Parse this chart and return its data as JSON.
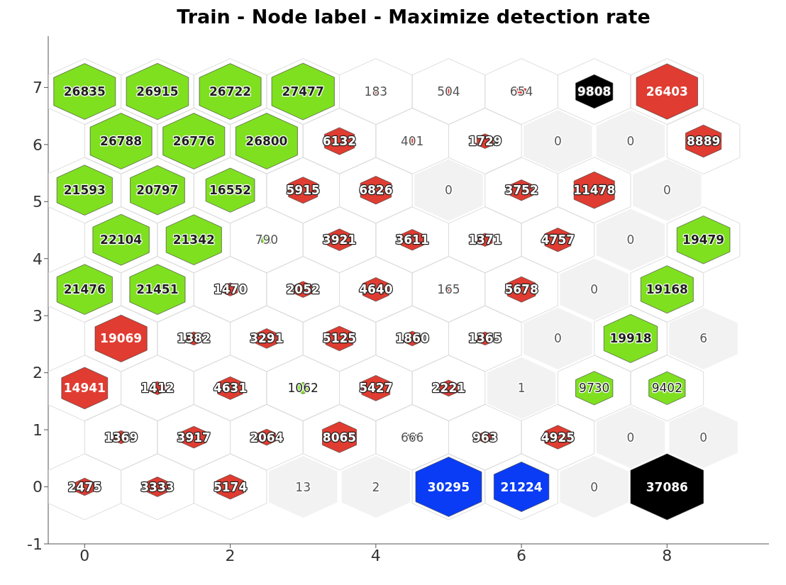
{
  "chart_data": {
    "type": "bubble",
    "title": "Train - Node label - Maximize detection rate",
    "xlim": [
      -0.5,
      9.4
    ],
    "xticks": [
      0,
      2,
      4,
      6,
      8
    ],
    "ylim": [
      -1,
      7.9
    ],
    "yticks": [
      -1,
      0,
      1,
      2,
      3,
      4,
      5,
      6,
      7
    ],
    "legend": false,
    "grid": false,
    "series": [
      {
        "color": "#7fe020",
        "x": [
          0,
          1,
          2,
          3,
          0.5,
          1.5,
          2.5,
          0,
          1,
          2,
          0.5,
          1.5,
          2.5,
          8.5,
          0,
          1,
          8,
          7.5,
          3,
          7,
          8
        ],
        "values": [
          6.93,
          6.93,
          6.93,
          6.93,
          6.06,
          6.06,
          6.06,
          5.2,
          5.2,
          5.2,
          4.33,
          4.33,
          4.33,
          4.33,
          3.46,
          3.46,
          3.46,
          2.6,
          1.73,
          1.73,
          1.73
        ],
        "sizes": [
          0.72,
          0.73,
          0.72,
          0.74,
          0.72,
          0.72,
          0.72,
          0.58,
          0.56,
          0.45,
          0.6,
          0.58,
          0.02,
          0.53,
          0.58,
          0.58,
          0.52,
          0.54,
          0.03,
          0.26,
          0.25
        ]
      },
      {
        "color": "#e03c31",
        "x": [
          4,
          5,
          6,
          8,
          3.5,
          4.5,
          5.5,
          8.5,
          3,
          4,
          6,
          7,
          3.5,
          4.5,
          5.5,
          6.5,
          2,
          3,
          4,
          5,
          6,
          0.5,
          1.5,
          2.5,
          3.5,
          4.5,
          5.5,
          0,
          1,
          2,
          4,
          5,
          0.5,
          1.5,
          2.5,
          3.5,
          5.5,
          6.5,
          0,
          1,
          2
        ],
        "values": [
          6.93,
          6.93,
          6.93,
          6.93,
          6.06,
          6.06,
          6.06,
          6.06,
          5.2,
          5.2,
          5.2,
          5.2,
          4.33,
          4.33,
          4.33,
          4.33,
          3.46,
          3.46,
          3.46,
          3.46,
          3.46,
          2.6,
          2.6,
          2.6,
          2.6,
          2.6,
          2.6,
          1.73,
          1.73,
          1.73,
          1.73,
          1.73,
          0.87,
          0.87,
          0.87,
          0.87,
          0.87,
          0.87,
          0,
          0,
          0
        ],
        "sizes": [
          0.005,
          0.01,
          0.02,
          0.71,
          0.17,
          0.01,
          0.05,
          0.24,
          0.16,
          0.18,
          0.1,
          0.31,
          0.11,
          0.1,
          0.04,
          0.13,
          0.04,
          0.06,
          0.13,
          0.004,
          0.15,
          0.51,
          0.04,
          0.09,
          0.14,
          0.05,
          0.04,
          0.4,
          0.04,
          0.12,
          0.15,
          0.06,
          0.04,
          0.11,
          0.06,
          0.22,
          0.03,
          0.13,
          0.07,
          0.09,
          0.14
        ]
      },
      {
        "color": "#000000",
        "x": [
          7,
          4.5,
          8
        ],
        "values": [
          6.93,
          0.87,
          0
        ],
        "sizes": [
          0.26,
          0.02,
          1
        ]
      },
      {
        "color": "#0a3cf5",
        "x": [
          5,
          6
        ],
        "values": [
          0,
          0
        ],
        "sizes": [
          0.82,
          0.57
        ]
      },
      {
        "type": "scatter",
        "color": "#f2f2f2",
        "x": [
          6.5,
          7.5,
          5,
          8,
          7.5,
          7,
          6.5,
          8.5,
          6,
          7.5,
          8.5,
          3,
          4,
          7
        ],
        "values": [
          6.06,
          6.06,
          5.2,
          5.2,
          4.33,
          3.46,
          2.6,
          2.6,
          1.73,
          0.87,
          0.87,
          0,
          0,
          0
        ]
      }
    ],
    "annotations": [
      {
        "text": "26835",
        "x": 0,
        "y": 6.93
      },
      {
        "text": "26915",
        "x": 1,
        "y": 6.93
      },
      {
        "text": "26722",
        "x": 2,
        "y": 6.93
      },
      {
        "text": "27477",
        "x": 3,
        "y": 6.93
      },
      {
        "text": "183",
        "x": 4,
        "y": 6.93
      },
      {
        "text": "504",
        "x": 5,
        "y": 6.93
      },
      {
        "text": "654",
        "x": 6,
        "y": 6.93
      },
      {
        "text": "9808",
        "x": 7,
        "y": 6.93
      },
      {
        "text": "26403",
        "x": 8,
        "y": 6.93
      },
      {
        "text": "26788",
        "x": 0.5,
        "y": 6.06
      },
      {
        "text": "26776",
        "x": 1.5,
        "y": 6.06
      },
      {
        "text": "26800",
        "x": 2.5,
        "y": 6.06
      },
      {
        "text": "6132",
        "x": 3.5,
        "y": 6.06
      },
      {
        "text": "401",
        "x": 4.5,
        "y": 6.06
      },
      {
        "text": "1729",
        "x": 5.5,
        "y": 6.06
      },
      {
        "text": "0",
        "x": 6.5,
        "y": 6.06
      },
      {
        "text": "0",
        "x": 7.5,
        "y": 6.06
      },
      {
        "text": "8889",
        "x": 8.5,
        "y": 6.06
      },
      {
        "text": "21593",
        "x": 0,
        "y": 5.2
      },
      {
        "text": "20797",
        "x": 1,
        "y": 5.2
      },
      {
        "text": "16552",
        "x": 2,
        "y": 5.2
      },
      {
        "text": "5915",
        "x": 3,
        "y": 5.2
      },
      {
        "text": "6826",
        "x": 4,
        "y": 5.2
      },
      {
        "text": "0",
        "x": 5,
        "y": 5.2
      },
      {
        "text": "3752",
        "x": 6,
        "y": 5.2
      },
      {
        "text": "11478",
        "x": 7,
        "y": 5.2
      },
      {
        "text": "0",
        "x": 8,
        "y": 5.2
      },
      {
        "text": "22104",
        "x": 0.5,
        "y": 4.33
      },
      {
        "text": "21342",
        "x": 1.5,
        "y": 4.33
      },
      {
        "text": "790",
        "x": 2.5,
        "y": 4.33
      },
      {
        "text": "3921",
        "x": 3.5,
        "y": 4.33
      },
      {
        "text": "3611",
        "x": 4.5,
        "y": 4.33
      },
      {
        "text": "1371",
        "x": 5.5,
        "y": 4.33
      },
      {
        "text": "4757",
        "x": 6.5,
        "y": 4.33
      },
      {
        "text": "0",
        "x": 7.5,
        "y": 4.33
      },
      {
        "text": "19479",
        "x": 8.5,
        "y": 4.33
      },
      {
        "text": "21476",
        "x": 0,
        "y": 3.46
      },
      {
        "text": "21451",
        "x": 1,
        "y": 3.46
      },
      {
        "text": "1470",
        "x": 2,
        "y": 3.46
      },
      {
        "text": "2052",
        "x": 3,
        "y": 3.46
      },
      {
        "text": "4640",
        "x": 4,
        "y": 3.46
      },
      {
        "text": "165",
        "x": 5,
        "y": 3.46
      },
      {
        "text": "5678",
        "x": 6,
        "y": 3.46
      },
      {
        "text": "0",
        "x": 7,
        "y": 3.46
      },
      {
        "text": "19168",
        "x": 8,
        "y": 3.46
      },
      {
        "text": "19069",
        "x": 0.5,
        "y": 2.6
      },
      {
        "text": "1382",
        "x": 1.5,
        "y": 2.6
      },
      {
        "text": "3291",
        "x": 2.5,
        "y": 2.6
      },
      {
        "text": "5125",
        "x": 3.5,
        "y": 2.6
      },
      {
        "text": "1860",
        "x": 4.5,
        "y": 2.6
      },
      {
        "text": "1365",
        "x": 5.5,
        "y": 2.6
      },
      {
        "text": "0",
        "x": 6.5,
        "y": 2.6
      },
      {
        "text": "19918",
        "x": 7.5,
        "y": 2.6
      },
      {
        "text": "6",
        "x": 8.5,
        "y": 2.6
      },
      {
        "text": "14941",
        "x": 0,
        "y": 1.73
      },
      {
        "text": "1412",
        "x": 1,
        "y": 1.73
      },
      {
        "text": "4631",
        "x": 2,
        "y": 1.73
      },
      {
        "text": "1062",
        "x": 3,
        "y": 1.73
      },
      {
        "text": "5427",
        "x": 4,
        "y": 1.73
      },
      {
        "text": "2221",
        "x": 5,
        "y": 1.73
      },
      {
        "text": "1",
        "x": 6,
        "y": 1.73
      },
      {
        "text": "9730",
        "x": 7,
        "y": 1.73
      },
      {
        "text": "9402",
        "x": 8,
        "y": 1.73
      },
      {
        "text": "1369",
        "x": 0.5,
        "y": 0.87
      },
      {
        "text": "3917",
        "x": 1.5,
        "y": 0.87
      },
      {
        "text": "2064",
        "x": 2.5,
        "y": 0.87
      },
      {
        "text": "8065",
        "x": 3.5,
        "y": 0.87
      },
      {
        "text": "666",
        "x": 4.5,
        "y": 0.87
      },
      {
        "text": "963",
        "x": 5.5,
        "y": 0.87
      },
      {
        "text": "4925",
        "x": 6.5,
        "y": 0.87
      },
      {
        "text": "0",
        "x": 7.5,
        "y": 0.87
      },
      {
        "text": "0",
        "x": 8.5,
        "y": 0.87
      },
      {
        "text": "2475",
        "x": 0,
        "y": 0
      },
      {
        "text": "3333",
        "x": 1,
        "y": 0
      },
      {
        "text": "5174",
        "x": 2,
        "y": 0
      },
      {
        "text": "13",
        "x": 3,
        "y": 0
      },
      {
        "text": "2",
        "x": 4,
        "y": 0
      },
      {
        "text": "30295",
        "x": 5,
        "y": 0
      },
      {
        "text": "21224",
        "x": 6,
        "y": 0
      },
      {
        "text": "0",
        "x": 7,
        "y": 0
      },
      {
        "text": "37086",
        "x": 8,
        "y": 0
      }
    ]
  }
}
